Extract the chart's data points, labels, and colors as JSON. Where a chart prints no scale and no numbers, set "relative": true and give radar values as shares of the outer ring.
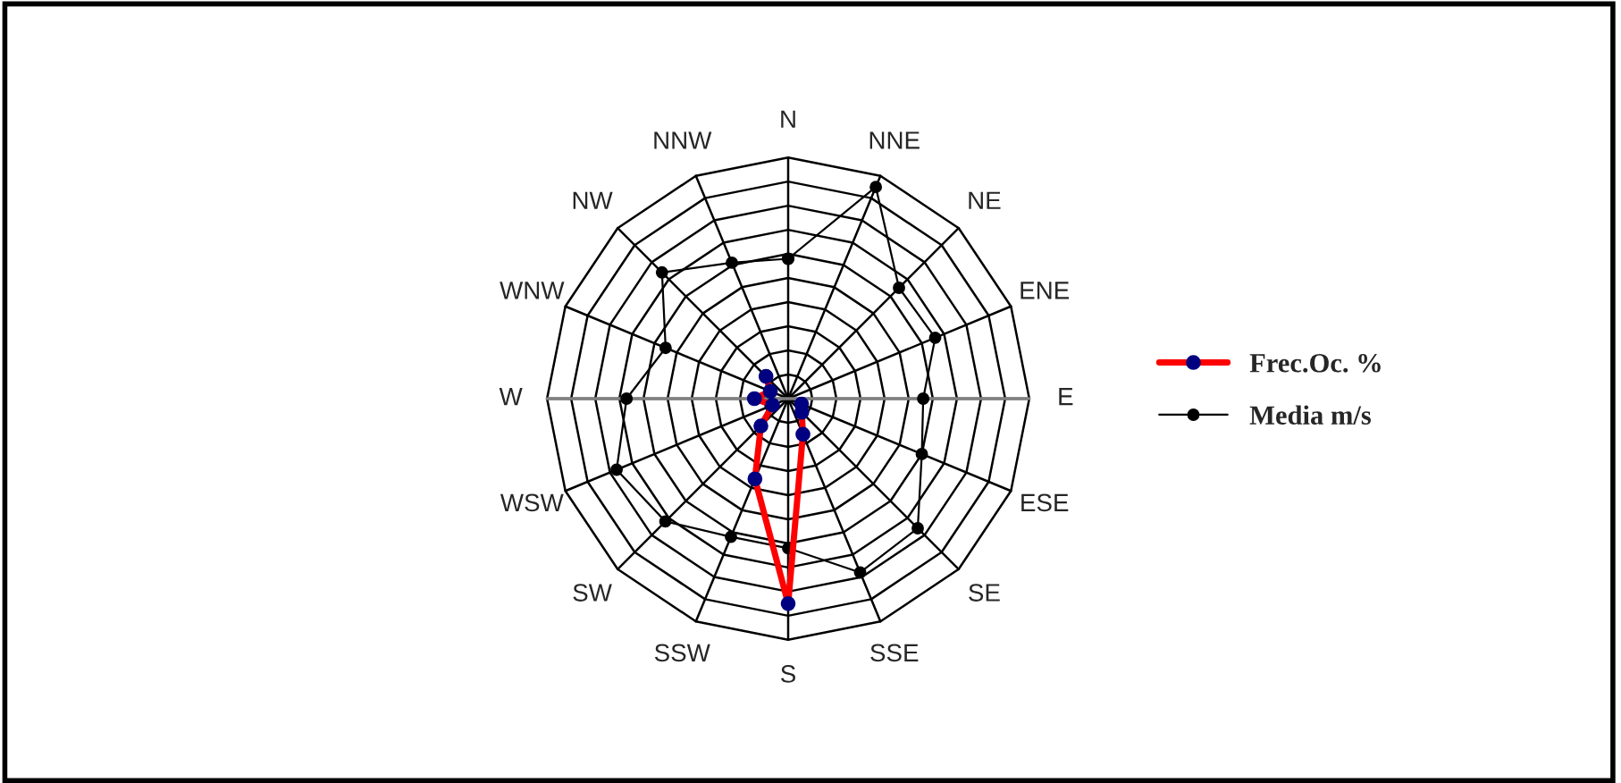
{
  "chart_data": {
    "type": "radar",
    "relative": true,
    "legend": "right",
    "categories": [
      "N",
      "NNE",
      "NE",
      "ENE",
      "E",
      "ESE",
      "SE",
      "SSE",
      "S",
      "SSW",
      "SW",
      "WSW",
      "W",
      "WNW",
      "NW",
      "NNW"
    ],
    "series": [
      {
        "name": "Frec.Oc. %",
        "color": "#ff0000",
        "marker": "circle",
        "values": [
          null,
          null,
          null,
          null,
          null,
          0.06,
          0.08,
          0.16,
          0.85,
          0.36,
          0.16,
          0.07,
          0.14,
          0.08,
          0.13,
          null
        ]
      },
      {
        "name": "Media m/s",
        "color": "#000000",
        "marker": "circle",
        "values": [
          0.58,
          0.95,
          0.65,
          0.66,
          0.56,
          0.6,
          0.76,
          0.78,
          0.62,
          0.62,
          0.72,
          0.77,
          0.67,
          0.55,
          0.74,
          0.61
        ]
      }
    ]
  }
}
